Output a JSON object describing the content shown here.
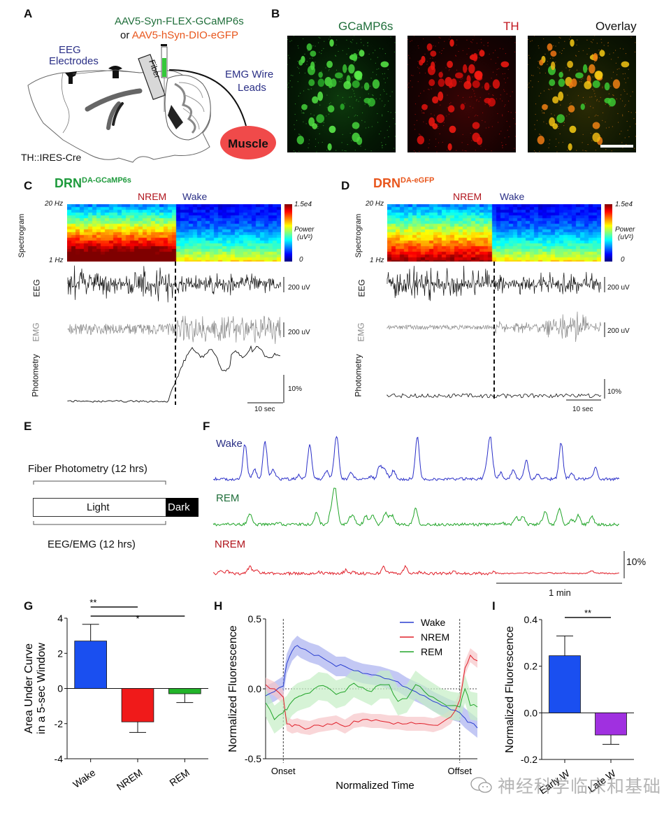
{
  "figure": {
    "panels": {
      "A": {
        "letter": "A",
        "virus_1": "AAV5-Syn-FLEX-GCaMP6s",
        "virus_or": "or",
        "virus_2": "AAV5-hSyn-DIO-eGFP",
        "eeg_label_1": "EEG",
        "eeg_label_2": "Electrodes",
        "fiber_label": "Fiber",
        "emg_label_1": "EMG Wire",
        "emg_label_2": "Leads",
        "muscle_label": "Muscle",
        "mouse_line": "TH::IRES-Cre",
        "colors": {
          "virus_1": "#1f6e3a",
          "virus_2": "#e8561c",
          "blue_text": "#2a2f86",
          "muscle": "#f04a4a",
          "syringe_fill": "#35c83a"
        }
      },
      "B": {
        "letter": "B",
        "titles": [
          "GCaMP6s",
          "TH",
          "Overlay"
        ],
        "title_colors": [
          "#1f6e3a",
          "#c0141c",
          "#111111"
        ]
      },
      "C": {
        "letter": "C",
        "title_main": "DRN",
        "title_sup": "DA-GCaMP6s",
        "title_color": "#1e9a3c",
        "state_left": "NREM",
        "state_right": "Wake",
        "spec_label": "Spectrogram",
        "freq_top": "20 Hz",
        "freq_bottom": "1 Hz",
        "cbar_top": "1.5e4",
        "cbar_mid_1": "Power",
        "cbar_mid_2": "(uV²)",
        "cbar_bottom": "0",
        "eeg_label": "EEG",
        "emg_label": "EMG",
        "photo_label": "Photometry",
        "eeg_scale": "200 uV",
        "emg_scale": "200 uV",
        "photo_scale": "10%",
        "time_scale": "10 sec"
      },
      "D": {
        "letter": "D",
        "title_main": "DRN",
        "title_sup": "DA-eGFP",
        "title_color": "#e8561c",
        "state_left": "NREM",
        "state_right": "Wake",
        "spec_label": "Spectrogram",
        "freq_top": "20 Hz",
        "freq_bottom": "1 Hz",
        "cbar_top": "1.5e4",
        "cbar_mid_1": "Power",
        "cbar_mid_2": "(uV²)",
        "cbar_bottom": "0",
        "eeg_label": "EEG",
        "emg_label": "EMG",
        "photo_label": "Photometry",
        "eeg_scale": "200 uV",
        "emg_scale": "200 uV",
        "photo_scale": "10%",
        "time_scale": "10 sec"
      },
      "E": {
        "letter": "E",
        "top_label": "Fiber Photometry (12 hrs)",
        "light_label": "Light",
        "dark_label": "Dark",
        "bottom_label": "EEG/EMG (12 hrs)"
      },
      "F": {
        "letter": "F",
        "traces": [
          {
            "name": "Wake",
            "color": "#2a2fc8",
            "label_color": "#2a2f86"
          },
          {
            "name": "REM",
            "color": "#22a52a",
            "label_color": "#1f6e3a"
          },
          {
            "name": "NREM",
            "color": "#e0202a",
            "label_color": "#b0141c"
          }
        ],
        "scale_y": "10%",
        "scale_x": "1 min"
      },
      "G": {
        "letter": "G"
      },
      "H": {
        "letter": "H"
      },
      "I": {
        "letter": "I"
      }
    },
    "state_colors": {
      "nrem": "#b0141c",
      "wake": "#2a2f86"
    }
  },
  "chart_data": [
    {
      "id": "G",
      "type": "bar",
      "title": "",
      "xlabel": "",
      "ylabel": "Area Under Curve in a 5-sec Window",
      "ylabel_lines": [
        "Area Under Curve",
        "in a 5-sec Window"
      ],
      "categories": [
        "Wake",
        "NREM",
        "REM"
      ],
      "values": [
        2.7,
        -1.9,
        -0.3
      ],
      "errors": [
        0.95,
        0.6,
        0.5
      ],
      "colors": [
        "#1a4ff0",
        "#f01a1a",
        "#22b52a"
      ],
      "ylim": [
        -4,
        4
      ],
      "yticks": [
        4,
        2,
        0,
        -2,
        -4
      ],
      "ytick_labels": [
        "4",
        "2",
        "0",
        "-2",
        "-4"
      ],
      "significance": [
        {
          "from": "Wake",
          "to": "NREM",
          "label": "**"
        },
        {
          "from": "Wake",
          "to": "REM",
          "label": "*"
        }
      ],
      "grid": false
    },
    {
      "id": "H",
      "type": "line",
      "title": "",
      "xlabel": "Normalized Time",
      "ylabel": "Normalized Fluorescence",
      "ylim": [
        -0.5,
        0.5
      ],
      "yticks": [
        0.5,
        0.0,
        -0.5
      ],
      "ytick_labels": [
        "0.5",
        "0.0",
        "-0.5"
      ],
      "xtick_labels": [
        "Onset",
        "Offset"
      ],
      "x_range": [
        -0.1,
        1.1
      ],
      "x_markers": [
        0,
        1
      ],
      "legend": {
        "placement": "top-right",
        "entries": [
          "Wake",
          "NREM",
          "REM"
        ]
      },
      "x": [
        -0.1,
        -0.05,
        0,
        0.02,
        0.05,
        0.08,
        0.1,
        0.15,
        0.2,
        0.25,
        0.3,
        0.35,
        0.4,
        0.45,
        0.5,
        0.55,
        0.6,
        0.65,
        0.7,
        0.75,
        0.8,
        0.85,
        0.9,
        0.95,
        1.0,
        1.03,
        1.06,
        1.1
      ],
      "series": [
        {
          "name": "Wake",
          "color": "#2a3fd0",
          "band_color": "#aab0f0",
          "values": [
            -0.05,
            -0.02,
            0.02,
            0.18,
            0.27,
            0.31,
            0.29,
            0.26,
            0.24,
            0.2,
            0.16,
            0.16,
            0.13,
            0.11,
            0.1,
            0.09,
            0.07,
            0.05,
            0.01,
            -0.02,
            -0.05,
            -0.09,
            -0.12,
            -0.15,
            -0.17,
            -0.21,
            -0.24,
            -0.28
          ],
          "sem": 0.07
        },
        {
          "name": "NREM",
          "color": "#e0202a",
          "band_color": "#f6c4c8",
          "values": [
            0.03,
            0.0,
            -0.06,
            -0.25,
            -0.27,
            -0.26,
            -0.27,
            -0.28,
            -0.26,
            -0.25,
            -0.24,
            -0.27,
            -0.23,
            -0.22,
            -0.23,
            -0.23,
            -0.24,
            -0.24,
            -0.25,
            -0.25,
            -0.25,
            -0.26,
            -0.24,
            -0.2,
            -0.08,
            0.15,
            0.24,
            0.2
          ],
          "sem": 0.05
        },
        {
          "name": "REM",
          "color": "#22a52a",
          "band_color": "#c4eec4",
          "values": [
            -0.1,
            -0.22,
            -0.17,
            -0.15,
            -0.09,
            -0.06,
            -0.05,
            -0.03,
            0.02,
            0.01,
            -0.04,
            -0.02,
            0.04,
            0.01,
            -0.02,
            0.03,
            0.03,
            -0.09,
            -0.07,
            0.03,
            -0.02,
            -0.06,
            -0.1,
            -0.12,
            -0.13,
            0.0,
            -0.12,
            -0.13
          ],
          "sem": 0.1
        }
      ],
      "grid": false
    },
    {
      "id": "I",
      "type": "bar",
      "title": "",
      "xlabel": "",
      "ylabel": "Normalized Fluorescence",
      "categories": [
        "Early W",
        "Late W"
      ],
      "values": [
        0.245,
        -0.095
      ],
      "errors": [
        0.085,
        0.04
      ],
      "colors": [
        "#1a4ff0",
        "#a030e0"
      ],
      "ylim": [
        -0.2,
        0.4
      ],
      "yticks": [
        0.4,
        0.2,
        0.0,
        -0.2
      ],
      "ytick_labels": [
        "0.4",
        "0.2",
        "0.0",
        "-0.2"
      ],
      "significance": [
        {
          "from": "Early W",
          "to": "Late W",
          "label": "**"
        }
      ],
      "grid": false
    }
  ],
  "watermark": {
    "icon": "wechat-icon",
    "text": "神经科学临床和基础"
  }
}
